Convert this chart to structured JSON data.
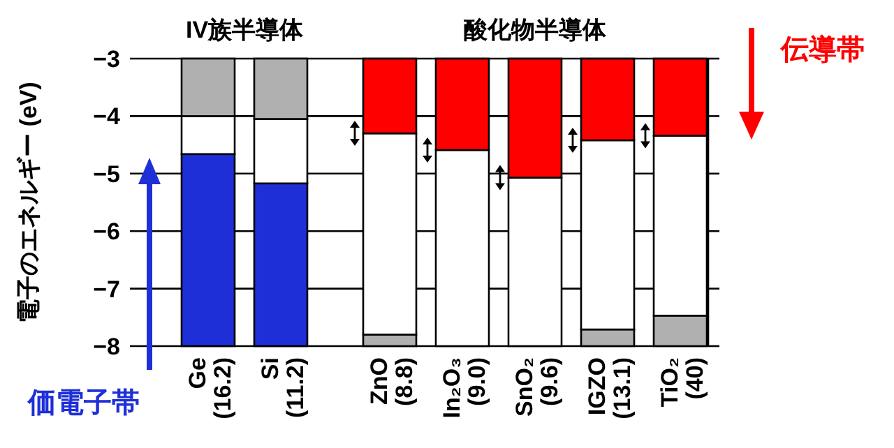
{
  "chart_data": {
    "type": "bar",
    "ylabel": "電子のエネルギー (eV)",
    "annotations": [
      "IV族半導体",
      "酸化物半導体"
    ],
    "categories": [
      "Ge\n(16.2)",
      "Si\n(11.2)",
      "ZnO\n(8.8)",
      "In₂O₃\n(9.0)",
      "SnO₂\n(9.6)",
      "IGZO\n(13.1)",
      "TiO₂\n(40)"
    ],
    "series": [
      {
        "name": "価電子帯",
        "color": "#1f2fd8",
        "colors": [
          "#1f2fd8",
          "#1f2fd8",
          "#b0b0b0",
          null,
          null,
          "#b0b0b0",
          "#b0b0b0"
        ],
        "base": [
          -8,
          -8,
          -8,
          null,
          null,
          -8,
          -8
        ],
        "values": [
          3.34,
          2.83,
          0.2,
          null,
          null,
          0.29,
          0.53
        ]
      },
      {
        "color": "#ffffff",
        "base": [
          -4.66,
          -5.17,
          -7.8,
          -8,
          -8,
          -7.71,
          -7.47
        ],
        "values": [
          0.66,
          1.12,
          3.5,
          3.41,
          2.93,
          3.29,
          3.13
        ]
      },
      {
        "name": "伝導帯",
        "color": "#ff0000",
        "colors": [
          "#b0b0b0",
          "#b0b0b0",
          "#ff0000",
          "#ff0000",
          "#ff0000",
          "#ff0000",
          "#ff0000"
        ],
        "base": [
          -4.0,
          -4.05,
          -4.3,
          -4.59,
          -5.07,
          -4.42,
          -4.34
        ],
        "values": [
          1.0,
          1.05,
          1.3,
          1.59,
          2.07,
          1.42,
          1.34
        ]
      }
    ],
    "ylim": [
      -8,
      -3
    ],
    "yticks": [
      -8,
      -7,
      -6,
      -5,
      -4,
      -3
    ],
    "grid": "y",
    "legend": "top right"
  }
}
